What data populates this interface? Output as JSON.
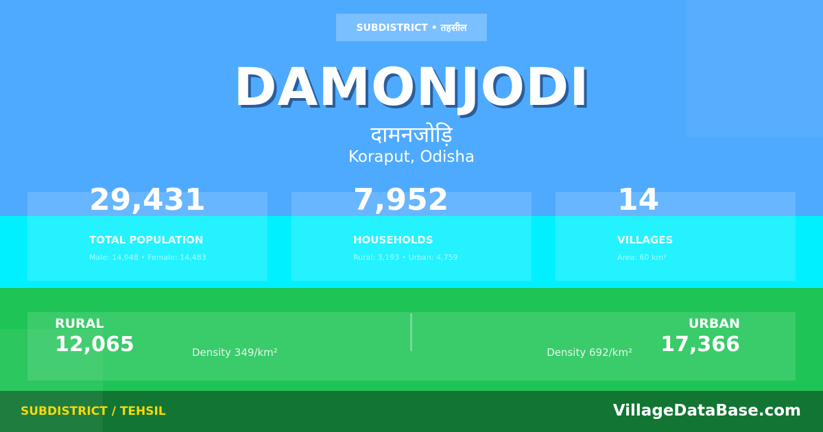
{
  "header": {
    "badge": "SUBDISTRICT • तहसील",
    "title": "DAMONJODI",
    "title_hindi": "दामनजोड़ि",
    "location": "Koraput, Odisha"
  },
  "stats": [
    {
      "value": "29,431",
      "label": "TOTAL POPULATION",
      "detail": "Male: 14,948 • Female: 14,483"
    },
    {
      "value": "7,952",
      "label": "HOUSEHOLDS",
      "detail": "Rural: 3,193 • Urban: 4,759"
    },
    {
      "value": "14",
      "label": "VILLAGES",
      "detail": "Area: 60 km²"
    }
  ],
  "split": {
    "rural": {
      "label": "RURAL",
      "value": "12,065",
      "density": "Density 349/km²"
    },
    "urban": {
      "label": "URBAN",
      "value": "17,366",
      "density": "Density 692/km²"
    }
  },
  "footer": {
    "category": "SUBDISTRICT / TEHSIL",
    "site": "VillageDataBase.com"
  },
  "colors": {
    "top": "#4eaaff",
    "middle": "#00f0ff",
    "green": "#1fc456",
    "footer": "#127533",
    "accent": "#f5d90a"
  }
}
